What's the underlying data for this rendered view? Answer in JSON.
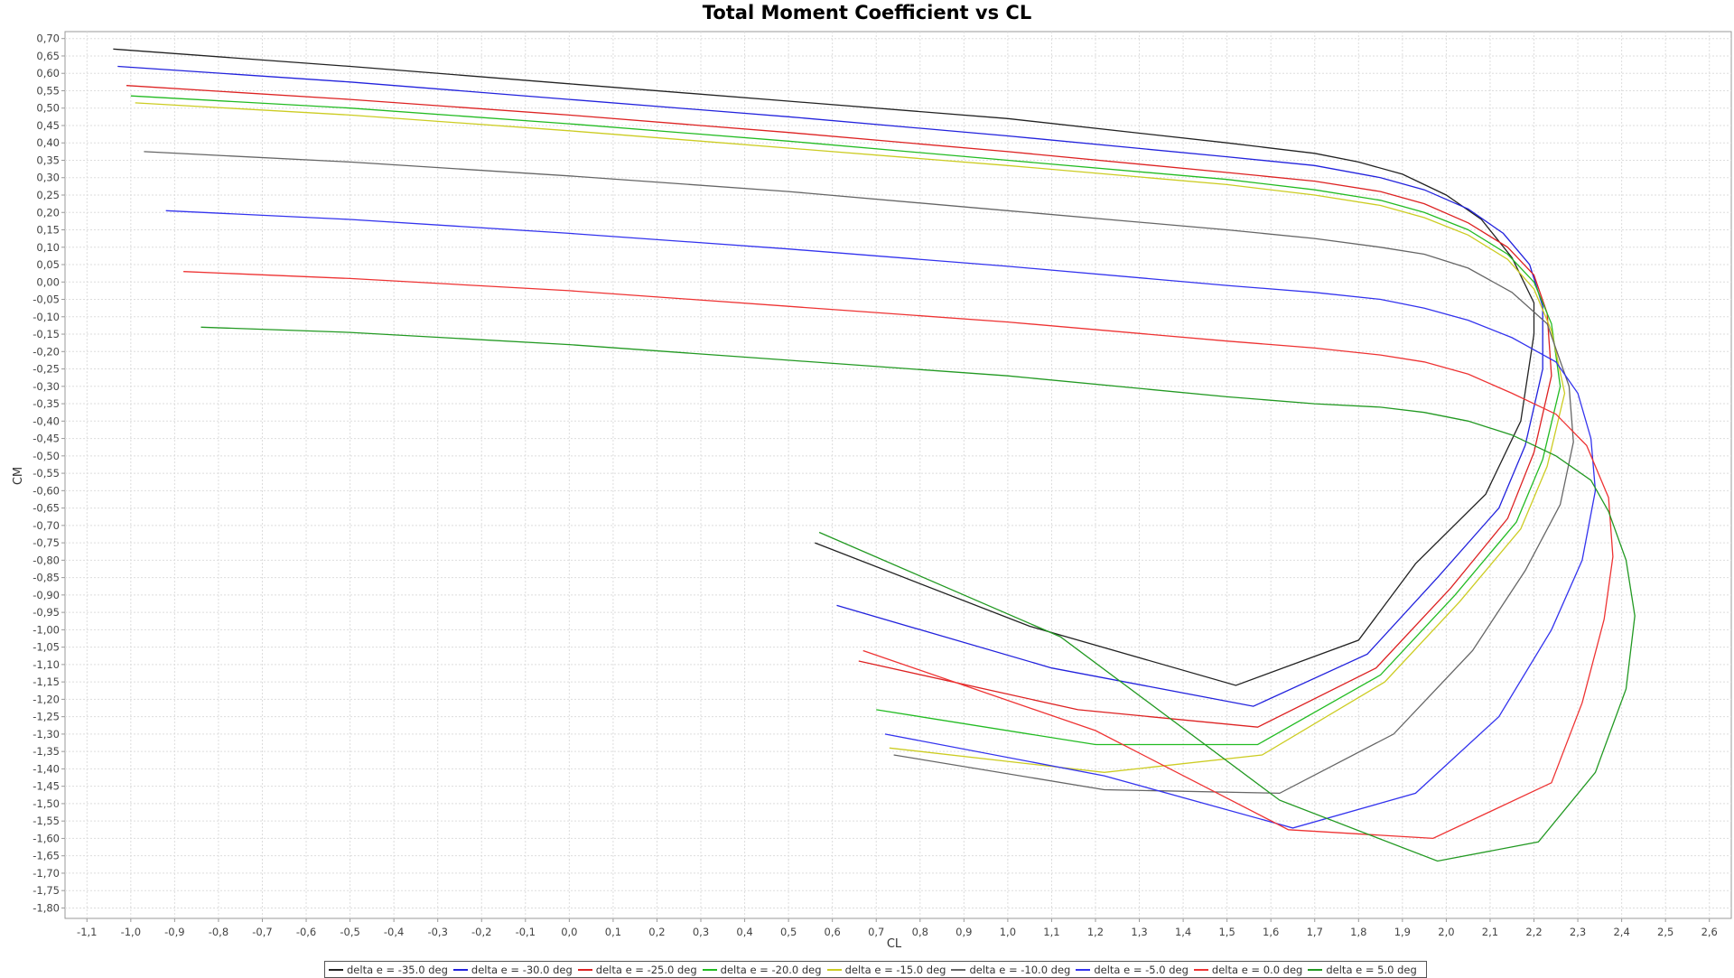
{
  "chart_data": {
    "type": "line",
    "title": "Total Moment Coefficient vs CL",
    "xlabel": "CL",
    "ylabel": "CM",
    "xlim": [
      -1.15,
      2.65
    ],
    "ylim": [
      -1.83,
      0.72
    ],
    "grid": true,
    "legend_position": "bottom",
    "x_ticks": [
      "-1,1",
      "-1,0",
      "-0,9",
      "-0,8",
      "-0,7",
      "-0,6",
      "-0,5",
      "-0,4",
      "-0,3",
      "-0,2",
      "-0,1",
      "0,0",
      "0,1",
      "0,2",
      "0,3",
      "0,4",
      "0,5",
      "0,6",
      "0,7",
      "0,8",
      "0,9",
      "1,0",
      "1,1",
      "1,2",
      "1,3",
      "1,4",
      "1,5",
      "1,6",
      "1,7",
      "1,8",
      "1,9",
      "2,0",
      "2,1",
      "2,2",
      "2,3",
      "2,4",
      "2,5",
      "2,6"
    ],
    "y_ticks": [
      "0,70",
      "0,65",
      "0,60",
      "0,55",
      "0,50",
      "0,45",
      "0,40",
      "0,35",
      "0,30",
      "0,25",
      "0,20",
      "0,15",
      "0,10",
      "0,05",
      "0,00",
      "-0,05",
      "-0,10",
      "-0,15",
      "-0,20",
      "-0,25",
      "-0,30",
      "-0,35",
      "-0,40",
      "-0,45",
      "-0,50",
      "-0,55",
      "-0,60",
      "-0,65",
      "-0,70",
      "-0,75",
      "-0,80",
      "-0,85",
      "-0,90",
      "-0,95",
      "-1,00",
      "-1,05",
      "-1,10",
      "-1,15",
      "-1,20",
      "-1,25",
      "-1,30",
      "-1,35",
      "-1,40",
      "-1,45",
      "-1,50",
      "-1,55",
      "-1,60",
      "-1,65",
      "-1,70",
      "-1,75",
      "-1,80"
    ],
    "series": [
      {
        "name": "delta e =  -35.0 deg",
        "color": "#222222",
        "points": [
          [
            -1.04,
            0.67
          ],
          [
            -0.5,
            0.62
          ],
          [
            0.0,
            0.57
          ],
          [
            0.5,
            0.52
          ],
          [
            1.0,
            0.47
          ],
          [
            1.5,
            0.4
          ],
          [
            1.7,
            0.37
          ],
          [
            1.8,
            0.345
          ],
          [
            1.9,
            0.31
          ],
          [
            2.0,
            0.25
          ],
          [
            2.08,
            0.18
          ],
          [
            2.15,
            0.07
          ],
          [
            2.2,
            -0.06
          ],
          [
            2.2,
            -0.15
          ],
          [
            2.17,
            -0.4
          ],
          [
            2.09,
            -0.61
          ],
          [
            1.93,
            -0.81
          ],
          [
            1.8,
            -1.03
          ],
          [
            1.52,
            -1.16
          ],
          [
            1.05,
            -0.99
          ],
          [
            0.56,
            -0.75
          ]
        ]
      },
      {
        "name": "delta e =  -30.0 deg",
        "color": "#2222dd",
        "points": [
          [
            -1.03,
            0.62
          ],
          [
            -0.5,
            0.575
          ],
          [
            0.0,
            0.525
          ],
          [
            0.5,
            0.475
          ],
          [
            1.0,
            0.42
          ],
          [
            1.5,
            0.36
          ],
          [
            1.7,
            0.335
          ],
          [
            1.85,
            0.3
          ],
          [
            1.95,
            0.265
          ],
          [
            2.05,
            0.21
          ],
          [
            2.13,
            0.14
          ],
          [
            2.19,
            0.05
          ],
          [
            2.22,
            -0.07
          ],
          [
            2.22,
            -0.25
          ],
          [
            2.18,
            -0.47
          ],
          [
            2.12,
            -0.65
          ],
          [
            1.98,
            -0.85
          ],
          [
            1.82,
            -1.07
          ],
          [
            1.56,
            -1.22
          ],
          [
            1.1,
            -1.11
          ],
          [
            0.61,
            -0.93
          ]
        ]
      },
      {
        "name": "delta e =  -25.0 deg",
        "color": "#dd2222",
        "points": [
          [
            -1.01,
            0.565
          ],
          [
            -0.5,
            0.525
          ],
          [
            0.0,
            0.48
          ],
          [
            0.5,
            0.43
          ],
          [
            1.0,
            0.375
          ],
          [
            1.5,
            0.315
          ],
          [
            1.7,
            0.29
          ],
          [
            1.85,
            0.26
          ],
          [
            1.95,
            0.225
          ],
          [
            2.05,
            0.17
          ],
          [
            2.14,
            0.1
          ],
          [
            2.2,
            0.02
          ],
          [
            2.23,
            -0.09
          ],
          [
            2.24,
            -0.27
          ],
          [
            2.2,
            -0.49
          ],
          [
            2.14,
            -0.68
          ],
          [
            2.01,
            -0.88
          ],
          [
            1.84,
            -1.11
          ],
          [
            1.57,
            -1.28
          ],
          [
            1.16,
            -1.23
          ],
          [
            0.66,
            -1.09
          ]
        ]
      },
      {
        "name": "delta e =  -20.0 deg",
        "color": "#22bb22",
        "points": [
          [
            -1.0,
            0.535
          ],
          [
            -0.5,
            0.5
          ],
          [
            0.0,
            0.455
          ],
          [
            0.5,
            0.405
          ],
          [
            1.0,
            0.35
          ],
          [
            1.5,
            0.295
          ],
          [
            1.7,
            0.265
          ],
          [
            1.85,
            0.235
          ],
          [
            1.95,
            0.2
          ],
          [
            2.05,
            0.15
          ],
          [
            2.14,
            0.08
          ],
          [
            2.2,
            0.0
          ],
          [
            2.24,
            -0.12
          ],
          [
            2.26,
            -0.3
          ],
          [
            2.22,
            -0.51
          ],
          [
            2.16,
            -0.69
          ],
          [
            2.02,
            -0.9
          ],
          [
            1.85,
            -1.13
          ],
          [
            1.57,
            -1.33
          ],
          [
            1.2,
            -1.33
          ],
          [
            0.7,
            -1.23
          ]
        ]
      },
      {
        "name": "delta e =  -15.0 deg",
        "color": "#cccc22",
        "points": [
          [
            -0.99,
            0.515
          ],
          [
            -0.5,
            0.48
          ],
          [
            0.0,
            0.435
          ],
          [
            0.5,
            0.385
          ],
          [
            1.0,
            0.335
          ],
          [
            1.5,
            0.28
          ],
          [
            1.7,
            0.25
          ],
          [
            1.85,
            0.22
          ],
          [
            1.95,
            0.185
          ],
          [
            2.05,
            0.135
          ],
          [
            2.14,
            0.065
          ],
          [
            2.2,
            -0.02
          ],
          [
            2.24,
            -0.14
          ],
          [
            2.27,
            -0.32
          ],
          [
            2.23,
            -0.53
          ],
          [
            2.17,
            -0.71
          ],
          [
            2.03,
            -0.92
          ],
          [
            1.86,
            -1.15
          ],
          [
            1.58,
            -1.36
          ],
          [
            1.22,
            -1.41
          ],
          [
            0.73,
            -1.34
          ]
        ]
      },
      {
        "name": "delta e =  -10.0 deg",
        "color": "#666666",
        "points": [
          [
            -0.97,
            0.375
          ],
          [
            -0.5,
            0.345
          ],
          [
            0.0,
            0.305
          ],
          [
            0.5,
            0.26
          ],
          [
            1.0,
            0.205
          ],
          [
            1.5,
            0.15
          ],
          [
            1.7,
            0.125
          ],
          [
            1.85,
            0.1
          ],
          [
            1.95,
            0.08
          ],
          [
            2.05,
            0.04
          ],
          [
            2.15,
            -0.03
          ],
          [
            2.23,
            -0.12
          ],
          [
            2.28,
            -0.3
          ],
          [
            2.29,
            -0.46
          ],
          [
            2.26,
            -0.64
          ],
          [
            2.18,
            -0.83
          ],
          [
            2.06,
            -1.06
          ],
          [
            1.88,
            -1.3
          ],
          [
            1.62,
            -1.47
          ],
          [
            1.22,
            -1.46
          ],
          [
            0.74,
            -1.36
          ]
        ]
      },
      {
        "name": "delta e =  -5.0 deg",
        "color": "#3333ee",
        "points": [
          [
            -0.92,
            0.205
          ],
          [
            -0.5,
            0.18
          ],
          [
            0.0,
            0.14
          ],
          [
            0.5,
            0.095
          ],
          [
            1.0,
            0.045
          ],
          [
            1.5,
            -0.01
          ],
          [
            1.7,
            -0.03
          ],
          [
            1.85,
            -0.05
          ],
          [
            1.95,
            -0.075
          ],
          [
            2.05,
            -0.11
          ],
          [
            2.15,
            -0.16
          ],
          [
            2.25,
            -0.23
          ],
          [
            2.3,
            -0.32
          ],
          [
            2.33,
            -0.45
          ],
          [
            2.34,
            -0.6
          ],
          [
            2.31,
            -0.8
          ],
          [
            2.24,
            -1.0
          ],
          [
            2.12,
            -1.25
          ],
          [
            1.93,
            -1.47
          ],
          [
            1.65,
            -1.57
          ],
          [
            1.22,
            -1.42
          ],
          [
            0.72,
            -1.3
          ]
        ]
      },
      {
        "name": "delta e =  0.0 deg",
        "color": "#ee3333",
        "points": [
          [
            -0.88,
            0.03
          ],
          [
            -0.5,
            0.01
          ],
          [
            0.0,
            -0.025
          ],
          [
            0.5,
            -0.07
          ],
          [
            1.0,
            -0.115
          ],
          [
            1.5,
            -0.17
          ],
          [
            1.7,
            -0.19
          ],
          [
            1.85,
            -0.21
          ],
          [
            1.95,
            -0.23
          ],
          [
            2.05,
            -0.265
          ],
          [
            2.15,
            -0.32
          ],
          [
            2.25,
            -0.38
          ],
          [
            2.32,
            -0.47
          ],
          [
            2.37,
            -0.62
          ],
          [
            2.38,
            -0.79
          ],
          [
            2.36,
            -0.97
          ],
          [
            2.31,
            -1.21
          ],
          [
            2.24,
            -1.44
          ],
          [
            1.97,
            -1.6
          ],
          [
            1.64,
            -1.575
          ],
          [
            1.2,
            -1.29
          ],
          [
            0.67,
            -1.06
          ]
        ]
      },
      {
        "name": "delta e =  5.0 deg",
        "color": "#229922",
        "points": [
          [
            -0.84,
            -0.13
          ],
          [
            -0.5,
            -0.145
          ],
          [
            0.0,
            -0.18
          ],
          [
            0.5,
            -0.225
          ],
          [
            1.0,
            -0.27
          ],
          [
            1.5,
            -0.33
          ],
          [
            1.7,
            -0.35
          ],
          [
            1.85,
            -0.36
          ],
          [
            1.95,
            -0.375
          ],
          [
            2.05,
            -0.4
          ],
          [
            2.15,
            -0.44
          ],
          [
            2.25,
            -0.5
          ],
          [
            2.33,
            -0.57
          ],
          [
            2.37,
            -0.66
          ],
          [
            2.41,
            -0.8
          ],
          [
            2.43,
            -0.96
          ],
          [
            2.41,
            -1.17
          ],
          [
            2.34,
            -1.41
          ],
          [
            2.21,
            -1.61
          ],
          [
            1.98,
            -1.665
          ],
          [
            1.62,
            -1.49
          ],
          [
            1.12,
            -1.02
          ],
          [
            0.57,
            -0.72
          ]
        ]
      }
    ]
  }
}
